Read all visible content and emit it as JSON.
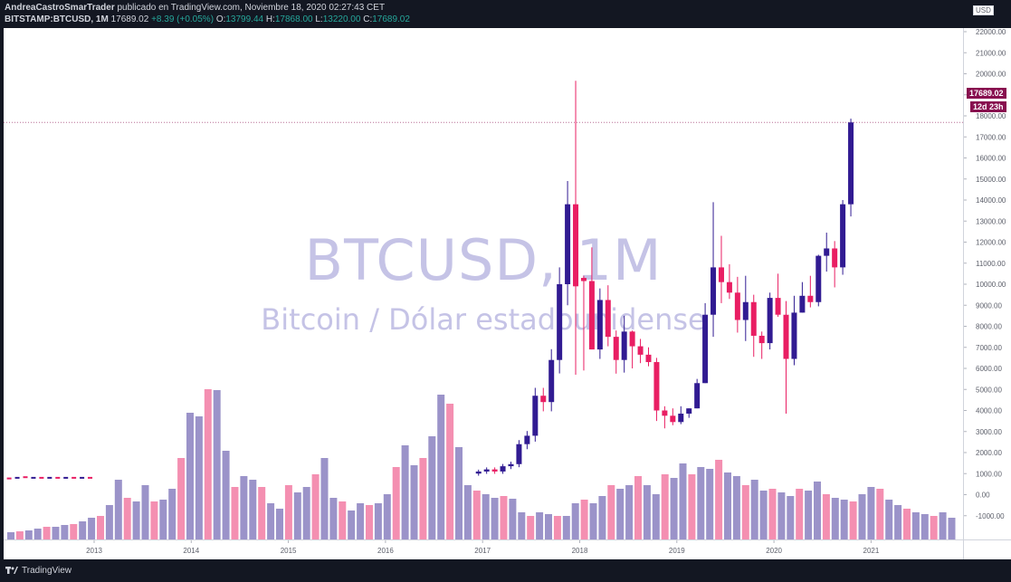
{
  "header": {
    "author": "AndreaCastroSmarTrader",
    "published": "publicado en TradingView.com, Noviembre 18, 2020 02:27:43 CET",
    "symbol": "BITSTAMP:BTCUSD, 1M",
    "last": "17689.02",
    "change": "+8.39 (+0.05%)",
    "o_label": "O:",
    "o_value": "13799.44",
    "h_label": "H:",
    "h_value": "17868.00",
    "l_label": "L:",
    "l_value": "13220.00",
    "c_label": "C:",
    "c_value": "17689.02"
  },
  "watermark": {
    "title": "BTCUSD, 1M",
    "subtitle": "Bitcoin / Dólar estadounidense"
  },
  "price_axis": {
    "currency": "USD",
    "last_price_tag": "17689.02",
    "countdown_tag": "12d 23h"
  },
  "footer": {
    "brand": "TradingView"
  },
  "colors": {
    "up": "#311b92",
    "down": "#e91e63",
    "vol_up": "#9b93c9",
    "vol_down": "#f48fb1",
    "background": "#131722"
  },
  "chart_data": {
    "type": "candlestick",
    "interval": "1M",
    "ylim": [
      -2000,
      22000
    ],
    "y_ticks": [
      -1000,
      0,
      1000,
      2000,
      3000,
      4000,
      5000,
      6000,
      7000,
      8000,
      9000,
      10000,
      11000,
      12000,
      13000,
      14000,
      15000,
      16000,
      17000,
      18000,
      19000,
      20000,
      21000,
      22000
    ],
    "x_ticks": [
      "2013",
      "2014",
      "2015",
      "2016",
      "2017",
      "2018",
      "2019",
      "2020",
      "2021"
    ],
    "ohlc_months": [
      {
        "o": 13799,
        "h": 19666,
        "l": 5700,
        "c": 9900
      },
      {
        "o": 10300,
        "h": 10400,
        "l": 5900,
        "c": 10150
      },
      {
        "o": 10150,
        "h": 11750,
        "l": 6900,
        "c": 6900
      },
      {
        "o": 6900,
        "h": 9800,
        "l": 6450,
        "c": 9250
      },
      {
        "o": 9250,
        "h": 9950,
        "l": 7050,
        "c": 7500
      },
      {
        "o": 7500,
        "h": 7800,
        "l": 5750,
        "c": 6400
      },
      {
        "o": 6400,
        "h": 8500,
        "l": 5800,
        "c": 7750
      },
      {
        "o": 7750,
        "h": 7800,
        "l": 6000,
        "c": 7050
      },
      {
        "o": 7050,
        "h": 7400,
        "l": 6250,
        "c": 6650
      },
      {
        "o": 6650,
        "h": 7000,
        "l": 6100,
        "c": 6300
      },
      {
        "o": 6300,
        "h": 6500,
        "l": 3500,
        "c": 4000
      },
      {
        "o": 4000,
        "h": 4200,
        "l": 3150,
        "c": 3750
      },
      {
        "o": 3750,
        "h": 4100,
        "l": 3300,
        "c": 3450
      },
      {
        "o": 3450,
        "h": 4200,
        "l": 3350,
        "c": 3850
      },
      {
        "o": 3850,
        "h": 4100,
        "l": 3650,
        "c": 4100
      },
      {
        "o": 4100,
        "h": 5500,
        "l": 4100,
        "c": 5300
      },
      {
        "o": 5300,
        "h": 9100,
        "l": 5300,
        "c": 8550
      },
      {
        "o": 8550,
        "h": 13900,
        "l": 7500,
        "c": 10800
      },
      {
        "o": 10800,
        "h": 12300,
        "l": 9100,
        "c": 10100
      },
      {
        "o": 10100,
        "h": 10950,
        "l": 9300,
        "c": 9600
      },
      {
        "o": 9600,
        "h": 10350,
        "l": 7700,
        "c": 8300
      },
      {
        "o": 8300,
        "h": 10400,
        "l": 7300,
        "c": 9150
      },
      {
        "o": 9150,
        "h": 9500,
        "l": 6550,
        "c": 7550
      },
      {
        "o": 7550,
        "h": 7750,
        "l": 6450,
        "c": 7200
      },
      {
        "o": 7200,
        "h": 9600,
        "l": 6900,
        "c": 9350
      },
      {
        "o": 9350,
        "h": 10500,
        "l": 8450,
        "c": 8550
      },
      {
        "o": 8550,
        "h": 9200,
        "l": 3850,
        "c": 6450
      },
      {
        "o": 6450,
        "h": 9450,
        "l": 6150,
        "c": 8650
      },
      {
        "o": 8650,
        "h": 10100,
        "l": 8650,
        "c": 9450
      },
      {
        "o": 9450,
        "h": 10400,
        "l": 8900,
        "c": 9150
      },
      {
        "o": 9150,
        "h": 11400,
        "l": 8950,
        "c": 11350
      },
      {
        "o": 11350,
        "h": 12450,
        "l": 10600,
        "c": 11700
      },
      {
        "o": 11700,
        "h": 12050,
        "l": 9850,
        "c": 10800
      },
      {
        "o": 10800,
        "h": 14000,
        "l": 10450,
        "c": 13800
      },
      {
        "o": 13799,
        "h": 17868,
        "l": 13220,
        "c": 17689
      }
    ],
    "last_price": 17689.02
  }
}
